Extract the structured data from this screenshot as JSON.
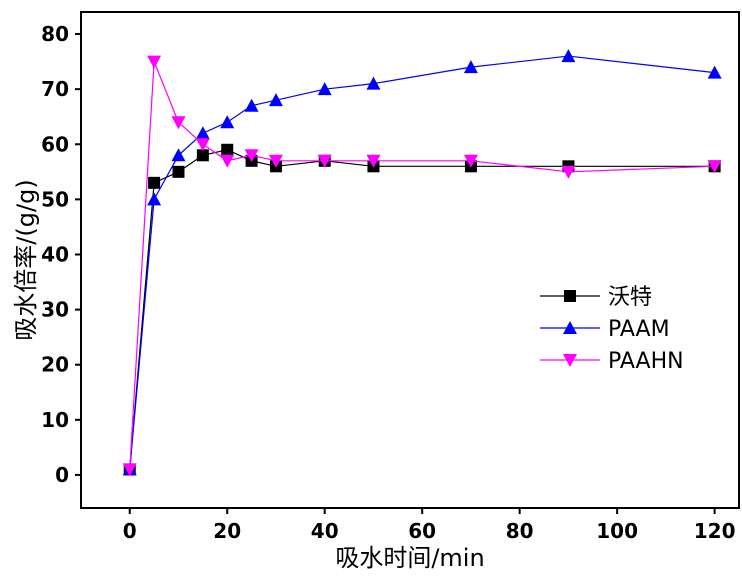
{
  "chart_data": {
    "type": "line",
    "xlabel": "吸水时间/min",
    "ylabel": "吸水倍率/(g/g)",
    "xlim": [
      -10,
      125
    ],
    "ylim": [
      -6,
      84
    ],
    "x_ticks": [
      0,
      20,
      40,
      60,
      80,
      100,
      120
    ],
    "y_ticks": [
      0,
      10,
      20,
      30,
      40,
      50,
      60,
      70,
      80
    ],
    "grid": false,
    "legend_position": "right-middle",
    "series": [
      {
        "name": "沃特",
        "marker": "square",
        "color": "#000000",
        "x": [
          0,
          5,
          10,
          15,
          20,
          25,
          30,
          40,
          50,
          70,
          90,
          120
        ],
        "y": [
          1,
          53,
          55,
          58,
          59,
          57,
          56,
          57,
          56,
          56,
          56,
          56
        ]
      },
      {
        "name": "PAAM",
        "marker": "triangle-up",
        "color": "#0000ff",
        "x": [
          0,
          5,
          10,
          15,
          20,
          25,
          30,
          40,
          50,
          70,
          90,
          120
        ],
        "y": [
          1,
          50,
          58,
          62,
          64,
          67,
          68,
          70,
          71,
          74,
          76,
          73
        ]
      },
      {
        "name": "PAAHN",
        "marker": "triangle-down",
        "color": "#ff00ff",
        "x": [
          0,
          5,
          10,
          15,
          20,
          25,
          30,
          40,
          50,
          70,
          90,
          120
        ],
        "y": [
          1,
          75,
          64,
          60,
          57,
          58,
          57,
          57,
          57,
          57,
          55,
          56
        ]
      }
    ]
  }
}
